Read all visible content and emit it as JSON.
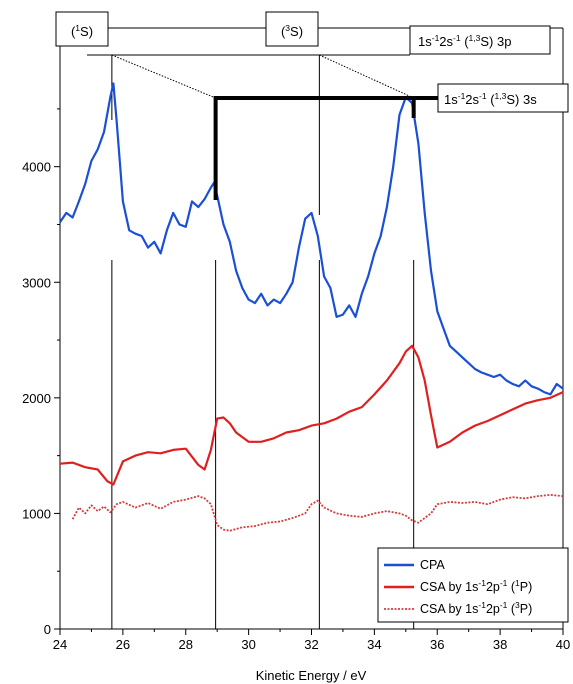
{
  "chart_data": {
    "type": "line",
    "xlabel": "Kinetic Energy / eV",
    "ylabel": "",
    "xlim": [
      24,
      40
    ],
    "ylim": [
      0,
      5200
    ],
    "x_ticks": [
      "24",
      "26",
      "28",
      "30",
      "32",
      "34",
      "36",
      "38",
      "40"
    ],
    "y_ticks": [
      "0",
      "1000",
      "2000",
      "3000",
      "4000"
    ],
    "grid": false,
    "legend_position": "bottom-right",
    "colors": {
      "cpa": "#1a4fd6",
      "csa1p": "#e02020",
      "csa3p": "#d43b3b"
    },
    "series": [
      {
        "name": "CPA",
        "color": "#1a4fd6",
        "x": [
          24.0,
          24.2,
          24.4,
          24.6,
          24.8,
          25.0,
          25.2,
          25.4,
          25.6,
          25.7,
          25.8,
          26.0,
          26.2,
          26.4,
          26.6,
          26.8,
          27.0,
          27.2,
          27.4,
          27.6,
          27.8,
          28.0,
          28.2,
          28.4,
          28.6,
          28.8,
          28.9,
          29.0,
          29.2,
          29.4,
          29.6,
          29.8,
          30.0,
          30.2,
          30.4,
          30.6,
          30.8,
          31.0,
          31.2,
          31.4,
          31.6,
          31.8,
          32.0,
          32.2,
          32.4,
          32.6,
          32.8,
          33.0,
          33.2,
          33.4,
          33.6,
          33.8,
          34.0,
          34.2,
          34.4,
          34.6,
          34.8,
          35.0,
          35.2,
          35.4,
          35.6,
          35.8,
          36.0,
          36.2,
          36.4,
          36.6,
          36.8,
          37.0,
          37.2,
          37.4,
          37.6,
          37.8,
          38.0,
          38.2,
          38.4,
          38.6,
          38.8,
          39.0,
          39.2,
          39.4,
          39.6,
          39.8,
          40.0
        ],
        "y": [
          3520,
          3600,
          3560,
          3700,
          3850,
          4050,
          4150,
          4300,
          4600,
          4720,
          4400,
          3700,
          3450,
          3420,
          3400,
          3300,
          3350,
          3250,
          3450,
          3600,
          3500,
          3480,
          3700,
          3650,
          3720,
          3820,
          3860,
          3750,
          3500,
          3350,
          3100,
          2950,
          2850,
          2820,
          2900,
          2800,
          2850,
          2820,
          2900,
          3000,
          3300,
          3550,
          3600,
          3400,
          3050,
          2950,
          2700,
          2720,
          2800,
          2700,
          2900,
          3050,
          3250,
          3400,
          3650,
          4000,
          4450,
          4600,
          4550,
          4200,
          3600,
          3100,
          2750,
          2600,
          2450,
          2400,
          2350,
          2300,
          2250,
          2220,
          2200,
          2180,
          2200,
          2150,
          2120,
          2100,
          2150,
          2100,
          2080,
          2050,
          2030,
          2120,
          2080
        ]
      },
      {
        "name": "CSA by 1s⁻¹2p⁻¹ (¹P)",
        "color": "#e02020",
        "x": [
          24.0,
          24.4,
          24.8,
          25.2,
          25.5,
          25.7,
          26.0,
          26.4,
          26.8,
          27.2,
          27.6,
          28.0,
          28.4,
          28.6,
          28.8,
          29.0,
          29.2,
          29.4,
          29.6,
          30.0,
          30.4,
          30.8,
          31.2,
          31.6,
          32.0,
          32.4,
          32.8,
          33.2,
          33.6,
          34.0,
          34.4,
          34.8,
          35.0,
          35.2,
          35.4,
          35.6,
          35.8,
          36.0,
          36.4,
          36.8,
          37.2,
          37.6,
          38.0,
          38.4,
          38.8,
          39.2,
          39.6,
          40.0
        ],
        "y": [
          1430,
          1440,
          1400,
          1380,
          1280,
          1250,
          1450,
          1500,
          1530,
          1520,
          1550,
          1560,
          1420,
          1380,
          1550,
          1820,
          1830,
          1780,
          1700,
          1620,
          1620,
          1650,
          1700,
          1720,
          1760,
          1780,
          1820,
          1880,
          1920,
          2030,
          2150,
          2300,
          2400,
          2450,
          2350,
          2150,
          1850,
          1570,
          1620,
          1700,
          1760,
          1800,
          1850,
          1900,
          1950,
          1980,
          2000,
          2050
        ]
      },
      {
        "name": "CSA by 1s⁻¹2p⁻¹ (³P)",
        "color": "#d43b3b",
        "x": [
          24.4,
          24.6,
          24.8,
          25.0,
          25.2,
          25.4,
          25.6,
          25.8,
          26.0,
          26.4,
          26.8,
          27.2,
          27.6,
          28.0,
          28.4,
          28.6,
          28.8,
          29.0,
          29.2,
          29.4,
          29.8,
          30.2,
          30.6,
          31.0,
          31.4,
          31.8,
          32.0,
          32.2,
          32.4,
          32.8,
          33.2,
          33.6,
          34.0,
          34.4,
          34.8,
          35.0,
          35.2,
          35.4,
          35.6,
          35.8,
          36.0,
          36.4,
          36.8,
          37.2,
          37.6,
          38.0,
          38.4,
          38.8,
          39.2,
          39.6,
          40.0
        ],
        "y": [
          950,
          1050,
          1000,
          1070,
          1020,
          1060,
          1010,
          1080,
          1100,
          1050,
          1090,
          1040,
          1100,
          1120,
          1150,
          1130,
          1080,
          900,
          860,
          850,
          880,
          890,
          920,
          930,
          960,
          1000,
          1080,
          1110,
          1050,
          1000,
          980,
          970,
          1000,
          1020,
          1000,
          980,
          940,
          920,
          960,
          1000,
          1080,
          1100,
          1090,
          1100,
          1080,
          1120,
          1140,
          1130,
          1150,
          1160,
          1150
        ]
      }
    ],
    "vertical_lines": [
      25.65,
      28.95,
      32.25,
      35.25
    ],
    "annotations": [
      {
        "id": "s1",
        "text": "(",
        "sup1": "1",
        "after": "S)",
        "x": 25.65
      },
      {
        "id": "s3",
        "text": "(",
        "sup1": "3",
        "after": "S)",
        "x": 32.25
      },
      {
        "id": "p3",
        "parts": [
          [
            "1s",
            ""
          ],
          [
            "",
            "-1"
          ],
          [
            "2s",
            ""
          ],
          [
            "",
            "-1"
          ],
          [
            " (",
            ""
          ],
          [
            "",
            "1,3"
          ],
          [
            "S) 3p",
            ""
          ]
        ]
      },
      {
        "id": "s3s",
        "parts": [
          [
            "1s",
            ""
          ],
          [
            "",
            "-1"
          ],
          [
            "2s",
            ""
          ],
          [
            "",
            "-1"
          ],
          [
            " (",
            ""
          ],
          [
            "",
            "1,3"
          ],
          [
            "S) 3s",
            ""
          ]
        ]
      }
    ],
    "legend": {
      "cpa": "CPA",
      "csa1p": {
        "base": "CSA by 1s",
        "sup1": "-1",
        "mid": "2p",
        "sup2": "-1",
        "tail1": " (",
        "sup3": "1",
        "tail2": "P)"
      },
      "csa3p": {
        "base": "CSA by 1s",
        "sup1": "-1",
        "mid": "2p",
        "sup2": "-1",
        "tail1": " (",
        "sup3": "3",
        "tail2": "P)"
      }
    }
  }
}
